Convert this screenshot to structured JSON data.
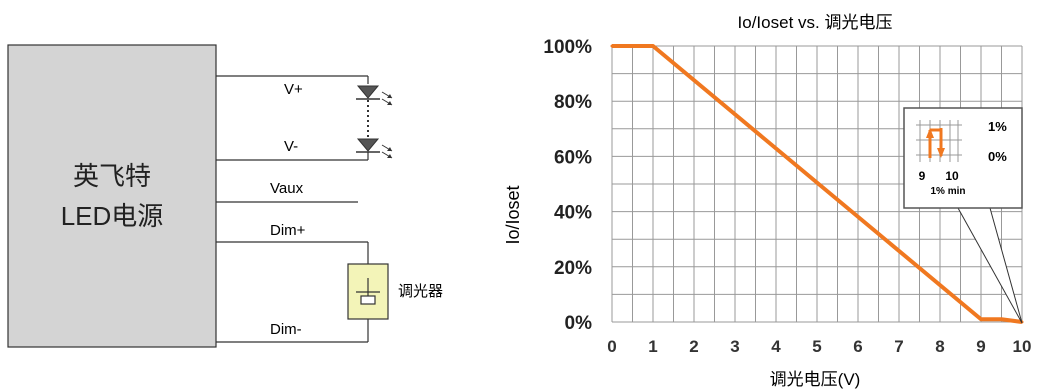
{
  "circuit": {
    "driver_name_line1": "英飞特",
    "driver_name_line2": "LED电源",
    "terminals": [
      "V+",
      "V-",
      "Vaux",
      "Dim+",
      "Dim-"
    ],
    "dimmer_label": "调光器"
  },
  "colors": {
    "driver_fill": "#d4d4d4",
    "dimmer_fill": "#f3f4b8",
    "curve": "#f07820",
    "grid": "#999999"
  },
  "chart_data": {
    "type": "line",
    "title": "Io/Ioset vs. 调光电压",
    "xlabel": "调光电压(V)",
    "ylabel": "Io/Ioset",
    "xlim": [
      0,
      10
    ],
    "ylim": [
      0,
      100
    ],
    "x_ticks": [
      "0",
      "1",
      "2",
      "3",
      "4",
      "5",
      "6",
      "7",
      "8",
      "9",
      "10"
    ],
    "y_ticks": [
      "0%",
      "20%",
      "40%",
      "60%",
      "80%",
      "100%"
    ],
    "grid": true,
    "series": [
      {
        "x": [
          0,
          1,
          9,
          9.5,
          10
        ],
        "y": [
          100,
          100,
          1,
          1,
          0
        ]
      }
    ],
    "inset": {
      "x_ticks": [
        "9",
        "10"
      ],
      "y_ticks": [
        "1%",
        "0%"
      ],
      "note": "1% min"
    }
  }
}
